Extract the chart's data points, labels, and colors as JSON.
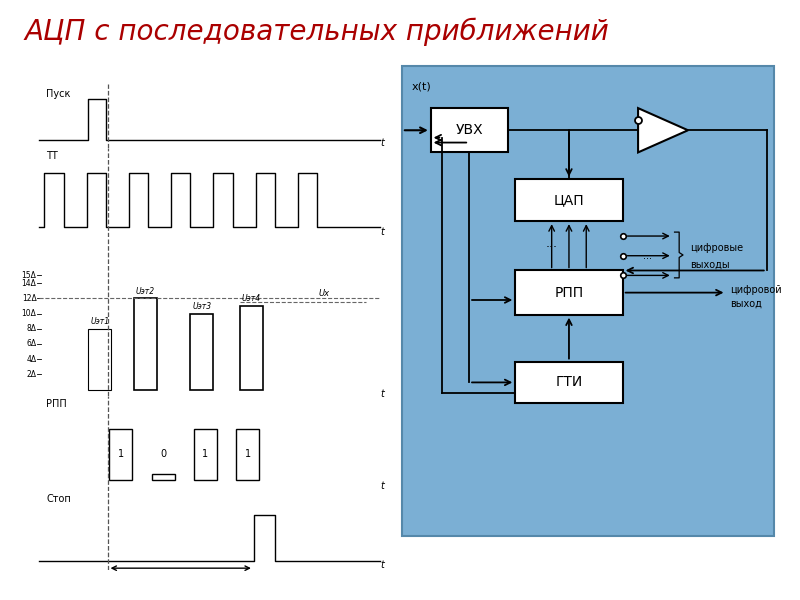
{
  "title": "АЦП с последовательных приближений",
  "title_color": "#aa0000",
  "title_fontsize": 20,
  "bg_color": "#ffffff",
  "diagram_bg": "#7bafd4",
  "signal_color": "#000000",
  "pusk_label": "Пуск",
  "tt_label": "ТТ",
  "rpp_label": "РПП",
  "stop_label": "Стоп",
  "rpp_bits": [
    "1",
    "0",
    "1",
    "1"
  ],
  "uvx_label": "УВХ",
  "cap_label": "ЦАП",
  "rpp_block_label": "РПП",
  "gti_label": "ГТИ",
  "xt_label": "x(t)",
  "digital_outputs_line1": "цифровые",
  "digital_outputs_line2": "выходы",
  "digital_output_line1": "цифровой",
  "digital_output_line2": "выход",
  "Uet_labels": [
    "Uэт1",
    "Uэт2",
    "Uэт3",
    "Uэт4"
  ],
  "Ux_label": "Uх"
}
